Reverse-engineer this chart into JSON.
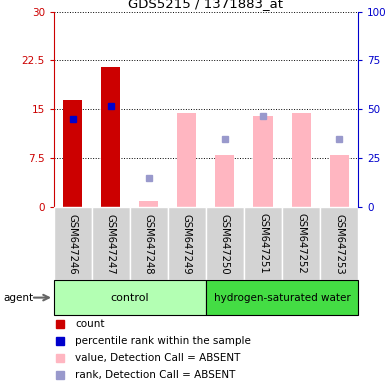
{
  "title": "GDS5215 / 1371883_at",
  "samples": [
    "GSM647246",
    "GSM647247",
    "GSM647248",
    "GSM647249",
    "GSM647250",
    "GSM647251",
    "GSM647252",
    "GSM647253"
  ],
  "ylim_left": [
    0,
    30
  ],
  "ylim_right": [
    0,
    100
  ],
  "yticks_left": [
    0,
    7.5,
    15,
    22.5,
    30
  ],
  "yticks_right": [
    0,
    25,
    50,
    75,
    100
  ],
  "yticklabels_left": [
    "0",
    "7.5",
    "15",
    "22.5",
    "30"
  ],
  "yticklabels_right": [
    "0",
    "25",
    "50",
    "75",
    "100%"
  ],
  "red_bars": [
    16.5,
    21.5,
    0,
    0,
    0,
    0,
    0,
    0
  ],
  "blue_squares_left": [
    13.5,
    15.5,
    0,
    0,
    0,
    0,
    0,
    0
  ],
  "pink_bars": [
    0,
    0,
    1.0,
    14.5,
    8.0,
    14.0,
    14.5,
    8.0
  ],
  "lavender_squares_left": [
    0,
    0,
    4.5,
    0,
    10.5,
    14.0,
    0,
    10.5
  ],
  "blue_square_present": [
    true,
    true,
    false,
    false,
    false,
    false,
    false,
    false
  ],
  "red_bar_present": [
    true,
    true,
    false,
    false,
    false,
    false,
    false,
    false
  ],
  "pink_bar_present": [
    false,
    false,
    true,
    true,
    true,
    true,
    true,
    true
  ],
  "lavender_present": [
    false,
    false,
    true,
    false,
    true,
    true,
    false,
    true
  ],
  "left_axis_color": "#cc0000",
  "right_axis_color": "#0000cc",
  "bar_color_red": "#cc0000",
  "bar_color_pink": "#ffb6c1",
  "square_color_blue": "#0000cc",
  "square_color_lavender": "#9999cc",
  "ctrl_color_light": "#b3ffb3",
  "ctrl_color_dark": "#44dd44",
  "sample_bg": "#d3d3d3",
  "control_count": 4,
  "hydrogen_count": 4,
  "legend_items": [
    {
      "color": "#cc0000",
      "label": "count"
    },
    {
      "color": "#0000cc",
      "label": "percentile rank within the sample"
    },
    {
      "color": "#ffb6c1",
      "label": "value, Detection Call = ABSENT"
    },
    {
      "color": "#9999cc",
      "label": "rank, Detection Call = ABSENT"
    }
  ]
}
